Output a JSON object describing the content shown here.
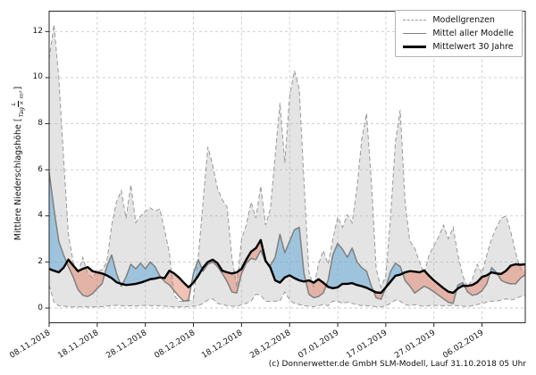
{
  "caption": "(c) Donnerwetter.de GmbH SLM-Modell, Lauf 31.10.2018 05 Uhr",
  "chart_data": {
    "type": "line",
    "title": "",
    "ylabel": "Mittlere Niederschlagshöhe [L/(Tag × m²)]",
    "ylabel_before": "Mittlere Niederschlagshöhe [",
    "ylabel_frac_num": "L",
    "ylabel_frac_den": "Tag × m²",
    "ylabel_after": "]",
    "grid": true,
    "legend_position": "upper right",
    "legend": [
      "Modellgrenzen",
      "Mittel aller Modelle",
      "Mittelwert 30 Jahre"
    ],
    "x_tick_labels": [
      "08.11.2018",
      "18.11.2018",
      "28.11.2018",
      "08.12.2018",
      "18.12.2018",
      "28.12.2018",
      "07.01.2019",
      "17.01.2019",
      "27.01.2019",
      "06.02.2019"
    ],
    "x_tick_days": [
      0,
      10,
      20,
      30,
      40,
      50,
      60,
      70,
      80,
      90
    ],
    "y_ticks": [
      0,
      2,
      4,
      6,
      8,
      10,
      12
    ],
    "ylim": [
      -0.65,
      12.9
    ],
    "x_days_total": 99,
    "series": [
      {
        "name": "Modellgrenzen (obere Grenze)",
        "values": [
          10.8,
          12.3,
          10.0,
          6.5,
          3.2,
          2.0,
          1.5,
          2.2,
          1.5,
          1.3,
          1.6,
          1.65,
          2.0,
          3.6,
          4.6,
          5.1,
          3.9,
          5.35,
          3.7,
          4.0,
          4.2,
          4.35,
          4.2,
          4.3,
          3.4,
          2.4,
          0.55,
          0.3,
          0.28,
          0.3,
          0.4,
          2.2,
          4.6,
          7.0,
          6.2,
          5.2,
          4.7,
          4.4,
          2.2,
          0.9,
          3.0,
          3.6,
          4.6,
          3.9,
          5.3,
          3.6,
          4.3,
          6.6,
          8.9,
          6.3,
          9.2,
          10.3,
          9.5,
          5.5,
          1.6,
          0.9,
          1.9,
          2.5,
          1.9,
          3.0,
          3.95,
          3.5,
          4.05,
          3.7,
          5.2,
          7.3,
          8.45,
          5.5,
          1.7,
          0.9,
          1.4,
          4.0,
          7.2,
          8.6,
          4.6,
          2.9,
          2.6,
          2.0,
          1.5,
          2.3,
          2.7,
          3.1,
          3.6,
          3.0,
          3.5,
          2.3,
          1.4,
          0.9,
          1.25,
          1.9,
          1.5,
          2.3,
          3.0,
          3.5,
          3.9,
          4.0,
          3.3,
          2.4,
          1.7,
          1.55
        ]
      },
      {
        "name": "Modellgrenzen (untere Grenze)",
        "values": [
          1.0,
          0.25,
          0.1,
          0.08,
          0.06,
          0.05,
          0.05,
          0.06,
          0.05,
          0.05,
          0.06,
          0.06,
          0.08,
          0.1,
          0.12,
          0.1,
          0.08,
          0.1,
          0.08,
          0.1,
          0.12,
          0.1,
          0.1,
          0.1,
          0.08,
          0.06,
          0.05,
          0.05,
          0.05,
          0.06,
          0.08,
          0.1,
          0.2,
          0.35,
          0.4,
          0.2,
          0.15,
          0.1,
          0.08,
          0.06,
          0.15,
          0.2,
          0.3,
          0.6,
          0.55,
          0.3,
          0.28,
          0.3,
          0.3,
          0.7,
          0.35,
          0.2,
          0.15,
          0.1,
          0.08,
          0.06,
          0.1,
          0.15,
          0.1,
          0.3,
          0.3,
          0.2,
          0.25,
          0.2,
          0.15,
          0.1,
          0.1,
          0.08,
          0.06,
          0.05,
          0.1,
          0.2,
          0.35,
          0.3,
          0.15,
          0.1,
          0.15,
          0.1,
          0.08,
          0.1,
          0.12,
          0.1,
          0.1,
          0.1,
          0.12,
          0.1,
          0.08,
          0.06,
          0.1,
          0.15,
          0.2,
          0.25,
          0.3,
          0.3,
          0.35,
          0.4,
          0.35,
          0.4,
          0.5,
          0.55
        ]
      },
      {
        "name": "Mittel aller Modelle",
        "values": [
          5.9,
          4.3,
          2.9,
          2.3,
          1.8,
          1.35,
          0.8,
          0.55,
          0.5,
          0.62,
          0.85,
          1.05,
          1.8,
          2.3,
          1.5,
          0.95,
          1.35,
          1.9,
          1.7,
          1.95,
          1.7,
          2.0,
          1.8,
          1.4,
          1.15,
          1.0,
          0.75,
          0.5,
          0.3,
          0.35,
          1.5,
          2.1,
          1.6,
          1.9,
          2.0,
          1.8,
          1.5,
          1.15,
          0.7,
          0.65,
          1.5,
          1.95,
          2.15,
          2.1,
          2.5,
          2.0,
          1.85,
          2.2,
          3.2,
          2.4,
          2.9,
          3.4,
          3.5,
          1.5,
          0.6,
          0.45,
          0.5,
          0.65,
          1.2,
          2.3,
          2.8,
          2.55,
          2.2,
          2.6,
          2.0,
          1.75,
          1.6,
          0.95,
          0.45,
          0.38,
          0.9,
          1.6,
          1.95,
          1.8,
          1.2,
          0.95,
          0.65,
          0.8,
          0.95,
          0.85,
          0.7,
          0.55,
          0.4,
          0.25,
          0.2,
          1.0,
          1.1,
          0.7,
          0.55,
          0.6,
          0.75,
          1.05,
          1.75,
          1.55,
          1.2,
          1.1,
          1.05,
          1.05,
          1.3,
          1.45
        ]
      },
      {
        "name": "Mittelwert 30 Jahre",
        "values": [
          1.7,
          1.62,
          1.55,
          1.75,
          2.1,
          1.85,
          1.6,
          1.7,
          1.78,
          1.6,
          1.55,
          1.5,
          1.42,
          1.3,
          1.12,
          1.05,
          1.0,
          1.02,
          1.05,
          1.1,
          1.17,
          1.25,
          1.28,
          1.33,
          1.3,
          1.62,
          1.5,
          1.32,
          1.1,
          0.9,
          1.1,
          1.4,
          1.75,
          2.0,
          2.1,
          1.95,
          1.62,
          1.55,
          1.5,
          1.55,
          1.7,
          2.1,
          2.45,
          2.6,
          2.95,
          2.05,
          1.75,
          1.2,
          1.1,
          1.33,
          1.42,
          1.3,
          1.2,
          1.15,
          1.2,
          1.1,
          1.25,
          1.1,
          0.92,
          0.86,
          0.9,
          1.05,
          1.05,
          1.08,
          1.0,
          0.95,
          0.88,
          0.78,
          0.68,
          0.66,
          0.9,
          1.15,
          1.4,
          1.45,
          1.55,
          1.6,
          1.58,
          1.55,
          1.63,
          1.4,
          1.2,
          1.03,
          0.86,
          0.71,
          0.66,
          0.85,
          0.97,
          0.96,
          1.0,
          1.12,
          1.35,
          1.42,
          1.55,
          1.5,
          1.48,
          1.62,
          1.84,
          1.9,
          1.88,
          1.9
        ]
      }
    ],
    "colors": {
      "band_fill": "rgba(170,170,170,0.32)",
      "band_edge": "#999999",
      "model_mean_line": "#7f7f7f",
      "mean30_line": "#000000",
      "above_mean_fill": "rgba(100,170,215,0.55)",
      "below_mean_fill": "rgba(225,120,90,0.45)",
      "grid": "#c9c9c9",
      "frame": "#262626"
    }
  }
}
